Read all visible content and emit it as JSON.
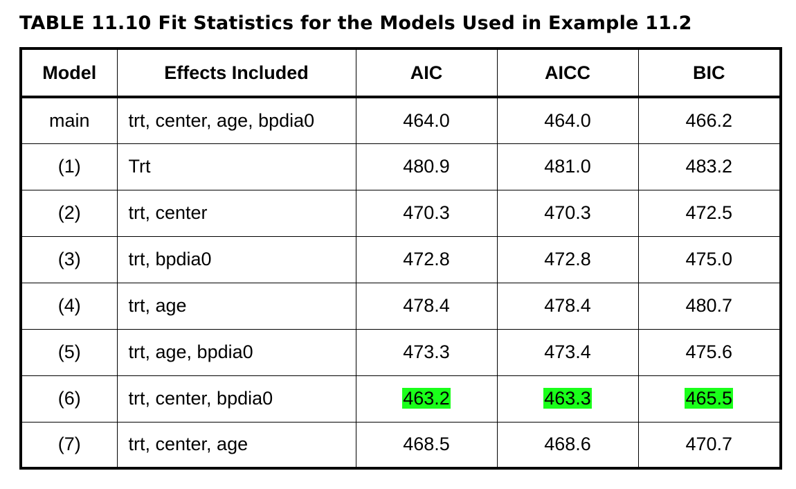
{
  "caption": {
    "number": "TABLE 11.10",
    "title": "Fit Statistics for the Models Used in Example 11.2"
  },
  "table": {
    "headers": [
      "Model",
      "Effects Included",
      "AIC",
      "AICC",
      "BIC"
    ],
    "rows": [
      [
        "main",
        "trt, center, age, bpdia0",
        "464.0",
        "464.0",
        "466.2"
      ],
      [
        "(1)",
        "Trt",
        "480.9",
        "481.0",
        "483.2"
      ],
      [
        "(2)",
        "trt, center",
        "470.3",
        "470.3",
        "472.5"
      ],
      [
        "(3)",
        "trt, bpdia0",
        "472.8",
        "472.8",
        "475.0"
      ],
      [
        "(4)",
        "trt, age",
        "478.4",
        "478.4",
        "480.7"
      ],
      [
        "(5)",
        "trt, age, bpdia0",
        "473.3",
        "473.4",
        "475.6"
      ],
      [
        "(6)",
        "trt, center, bpdia0",
        "463.2",
        "463.3",
        "465.5"
      ],
      [
        "(7)",
        "trt, center, age",
        "468.5",
        "468.6",
        "470.7"
      ]
    ],
    "highlighted_row_index": 6,
    "highlight_color": "#1aff1a"
  }
}
